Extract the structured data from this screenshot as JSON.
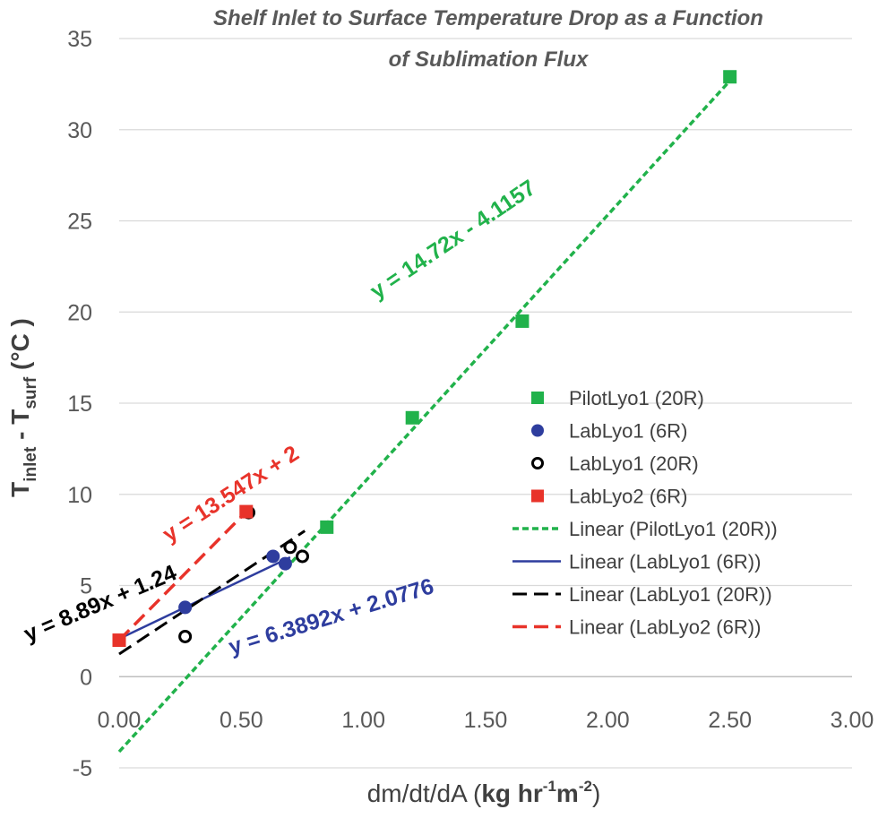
{
  "chart_data": {
    "type": "scatter",
    "title_lines": [
      "Shelf Inlet to Surface Temperature Drop as a Function",
      "of Sublimation Flux"
    ],
    "xlabel": {
      "plain": "dm/dt/dA (",
      "bold_1": "kg  hr",
      "sup_1": "-1",
      "bold_2": "m",
      "sup_2": "-2",
      "close": ")"
    },
    "ylabel": {
      "t1": "T",
      "sub1": "inlet",
      "mid": " - T",
      "sub2": "surf",
      "unit": " (°C )"
    },
    "xlim": [
      0,
      3
    ],
    "ylim": [
      -5,
      35
    ],
    "x_ticks": [
      0,
      0.5,
      1,
      1.5,
      2,
      2.5,
      3
    ],
    "x_tick_labels": [
      "0.00",
      "0.50",
      "1.00",
      "1.50",
      "2.00",
      "2.50",
      "3.00"
    ],
    "y_ticks": [
      -5,
      0,
      5,
      10,
      15,
      20,
      25,
      30,
      35
    ],
    "y_tick_labels": [
      "-5",
      "0",
      "5",
      "10",
      "15",
      "20",
      "25",
      "30",
      "35"
    ],
    "grid": "horizontal",
    "legend_position": "right",
    "series": [
      {
        "name": "PilotLyo1 (20R)",
        "marker": "square",
        "color": "#21B24B",
        "points": [
          [
            0.85,
            8.2
          ],
          [
            1.2,
            14.2
          ],
          [
            1.65,
            19.5
          ],
          [
            2.5,
            32.9
          ]
        ]
      },
      {
        "name": "LabLyo1 (6R)",
        "marker": "circle",
        "color": "#2E3D9E",
        "points": [
          [
            0.27,
            3.8
          ],
          [
            0.63,
            6.6
          ],
          [
            0.68,
            6.2
          ]
        ]
      },
      {
        "name": "LabLyo1 (20R)",
        "marker": "circle-open",
        "color": "#000000",
        "points": [
          [
            0.27,
            2.2
          ],
          [
            0.53,
            9.0
          ],
          [
            0.7,
            7.1
          ],
          [
            0.75,
            6.6
          ]
        ]
      },
      {
        "name": "LabLyo2 (6R)",
        "marker": "square",
        "color": "#E8332A",
        "points": [
          [
            0,
            2
          ],
          [
            0.52,
            9.05
          ]
        ]
      }
    ],
    "trendlines": [
      {
        "name": "Linear (PilotLyo1 (20R))",
        "slope": 14.72,
        "intercept": -4.1157,
        "x_range": [
          0,
          2.5
        ],
        "color": "#21B24B",
        "dash": "dotted",
        "width": 3.5,
        "equation": "y = 14.72x - 4.1157"
      },
      {
        "name": "Linear (LabLyo1 (6R))",
        "slope": 6.3892,
        "intercept": 2.0776,
        "x_range": [
          0,
          0.7
        ],
        "color": "#2E3D9E",
        "dash": "solid",
        "width": 2.5,
        "equation": "y = 6.3892x + 2.0776"
      },
      {
        "name": "Linear (LabLyo1 (20R))",
        "slope": 8.89,
        "intercept": 1.24,
        "x_range": [
          0,
          0.76
        ],
        "color": "#000000",
        "dash": "dashed",
        "width": 3,
        "equation": "y = 8.89x + 1.24"
      },
      {
        "name": "Linear (LabLyo2 (6R))",
        "slope": 13.547,
        "intercept": 2,
        "x_range": [
          0,
          0.52
        ],
        "color": "#E8332A",
        "dash": "dashed",
        "width": 3.5,
        "equation": "y = 13.547x + 2"
      }
    ]
  }
}
